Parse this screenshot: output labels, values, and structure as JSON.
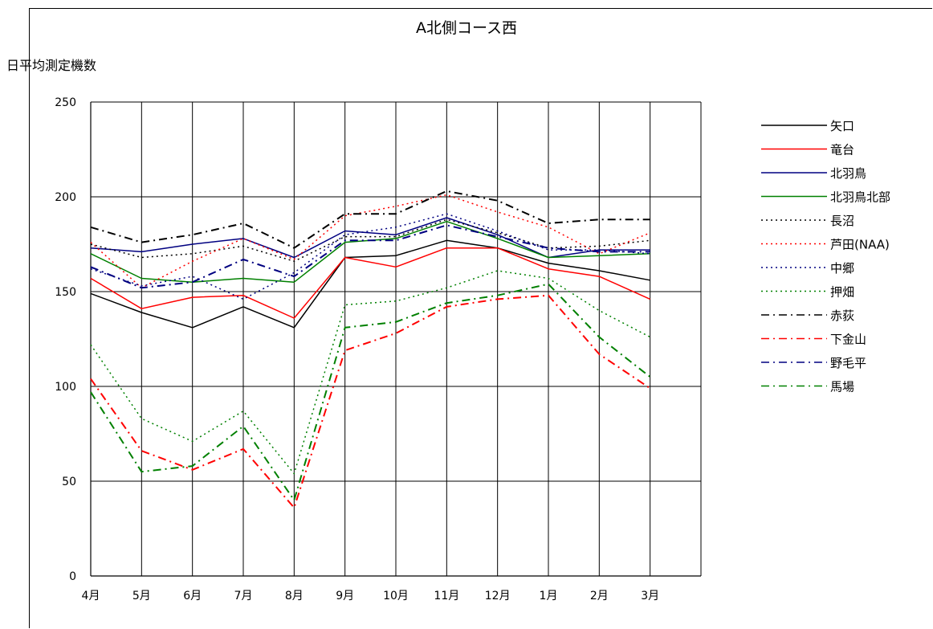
{
  "chart_data": {
    "type": "line",
    "title": "A北側コース西",
    "ylabel": "日平均測定機数",
    "xlabel": "",
    "ylim": [
      0,
      250
    ],
    "yticks": [
      0,
      50,
      100,
      150,
      200,
      250
    ],
    "grid": true,
    "legend_position": "right",
    "categories": [
      "4月",
      "5月",
      "6月",
      "7月",
      "8月",
      "9月",
      "10月",
      "11月",
      "12月",
      "1月",
      "2月",
      "3月"
    ],
    "series": [
      {
        "name": "矢口",
        "color": "#000000",
        "style": "solid",
        "values": [
          149,
          139,
          131,
          142,
          131,
          168,
          169,
          177,
          173,
          165,
          161,
          156
        ]
      },
      {
        "name": "竜台",
        "color": "#ff0000",
        "style": "solid",
        "values": [
          157,
          141,
          147,
          148,
          136,
          168,
          163,
          173,
          173,
          162,
          158,
          146
        ]
      },
      {
        "name": "北羽鳥",
        "color": "#000080",
        "style": "solid",
        "values": [
          173,
          171,
          175,
          178,
          168,
          182,
          180,
          189,
          180,
          168,
          172,
          172
        ]
      },
      {
        "name": "北羽鳥北部",
        "color": "#008000",
        "style": "solid",
        "values": [
          170,
          157,
          155,
          157,
          155,
          176,
          178,
          187,
          178,
          168,
          169,
          170
        ]
      },
      {
        "name": "長沼",
        "color": "#000000",
        "style": "dotted",
        "values": [
          175,
          168,
          170,
          174,
          166,
          179,
          179,
          188,
          181,
          173,
          174,
          177
        ]
      },
      {
        "name": "芦田(NAA)",
        "color": "#ff0000",
        "style": "dotted",
        "values": [
          176,
          152,
          166,
          178,
          167,
          190,
          195,
          201,
          192,
          184,
          170,
          181
        ]
      },
      {
        "name": "中郷",
        "color": "#000080",
        "style": "dotted",
        "values": [
          162,
          153,
          158,
          146,
          160,
          180,
          184,
          191,
          182,
          172,
          172,
          170
        ]
      },
      {
        "name": "押畑",
        "color": "#008000",
        "style": "dotted",
        "values": [
          122,
          83,
          71,
          87,
          54,
          143,
          145,
          152,
          161,
          157,
          140,
          126
        ]
      },
      {
        "name": "赤荻",
        "color": "#000000",
        "style": "dashdot",
        "values": [
          184,
          176,
          180,
          186,
          173,
          191,
          191,
          203,
          198,
          186,
          188,
          188
        ]
      },
      {
        "name": "下金山",
        "color": "#ff0000",
        "style": "dashdot",
        "values": [
          104,
          66,
          56,
          67,
          36,
          119,
          128,
          142,
          146,
          148,
          117,
          99
        ]
      },
      {
        "name": "野毛平",
        "color": "#000080",
        "style": "dashdot",
        "values": [
          163,
          152,
          155,
          167,
          158,
          177,
          177,
          185,
          179,
          173,
          171,
          171
        ]
      },
      {
        "name": "馬場",
        "color": "#008000",
        "style": "dashdot",
        "values": [
          97,
          55,
          58,
          79,
          40,
          131,
          134,
          144,
          148,
          154,
          126,
          105
        ]
      }
    ]
  }
}
